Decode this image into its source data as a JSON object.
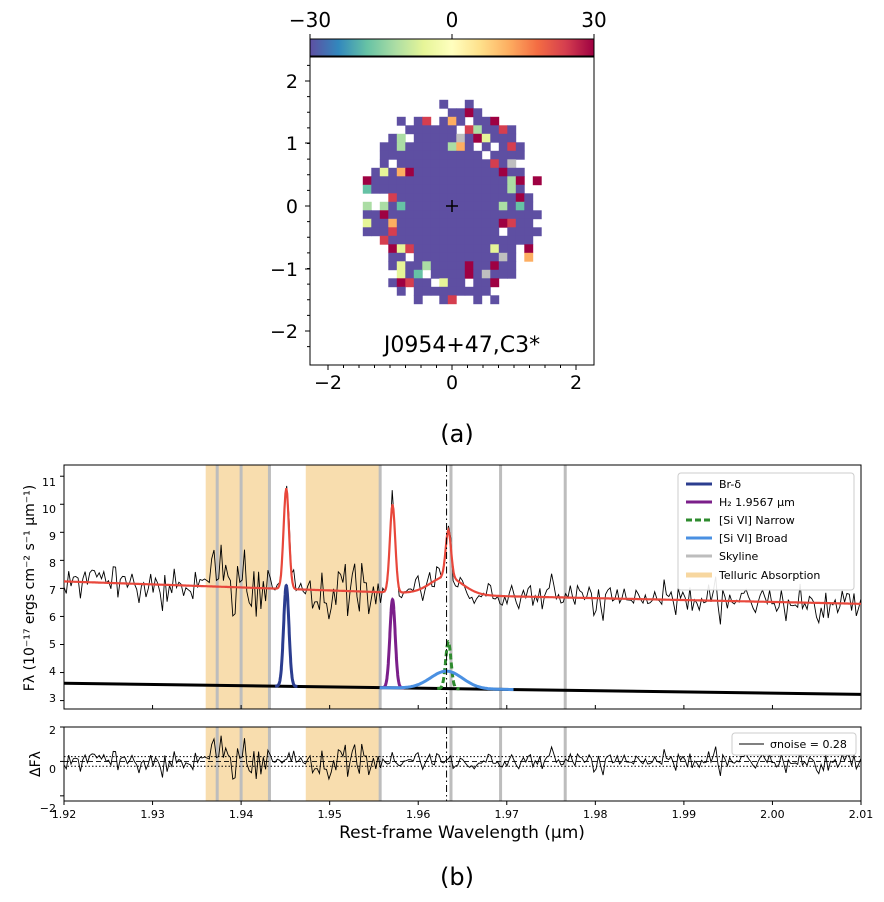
{
  "panel_a": {
    "label": "(a)",
    "colorbar_ticks": [
      "−30",
      "0",
      "30"
    ],
    "x_ticks": [
      "−2",
      "0",
      "2"
    ],
    "y_ticks": [
      "2",
      "1",
      "0",
      "−1",
      "−2"
    ],
    "object_label": "J0954+47,C3*",
    "colorbar_range": [
      -30,
      30
    ],
    "colormap": "Spectral_r",
    "dominant_color": "#5e4fa2",
    "extent": [
      -2.3,
      2.3,
      -2.4,
      2.4
    ]
  },
  "panel_b": {
    "label": "(b)",
    "ylabel_top": "Fλ (10⁻¹⁷ ergs cm⁻² s⁻¹ μm⁻¹)",
    "ylabel_bottom": "ΔFλ",
    "xlabel": "Rest-frame Wavelength (μm)",
    "x_ticks": [
      "1.92",
      "1.93",
      "1.94",
      "1.95",
      "1.96",
      "1.97",
      "1.98",
      "1.99",
      "2.00",
      "2.01"
    ],
    "y_ticks_top": [
      "3",
      "4",
      "5",
      "6",
      "7",
      "8",
      "9",
      "10",
      "11"
    ],
    "y_ticks_bottom": [
      "2",
      "0",
      "−2"
    ],
    "legend": [
      {
        "label": "Br-δ",
        "color": "#2b3d8f",
        "style": "solid"
      },
      {
        "label": "H₂ 1.9567 μm",
        "color": "#7b1f8a",
        "style": "solid"
      },
      {
        "label": "[Si VI] Narrow",
        "color": "#2e8b2e",
        "style": "dashed"
      },
      {
        "label": "[Si VI] Broad",
        "color": "#4a90e2",
        "style": "solid"
      },
      {
        "label": "Skyline",
        "color": "#bdbdbd",
        "style": "solid"
      },
      {
        "label": "Telluric Absorption",
        "color": "#f7d7a0",
        "style": "solid"
      }
    ],
    "noise_legend": "σnoise = 0.28"
  },
  "chart_data": [
    {
      "type": "heatmap",
      "title": "J0954+47,C3*",
      "xlim": [
        -2.3,
        2.3
      ],
      "ylim": [
        -2.4,
        2.4
      ],
      "color_range": [
        -30,
        30
      ],
      "note_values": "velocity map; most spaxels near -30 (purple), scattered outliers"
    },
    {
      "type": "line",
      "xlabel": "Rest-frame Wavelength (μm)",
      "ylabel": "Fλ (10⁻¹⁷ ergs cm⁻² s⁻¹ μm⁻¹)",
      "xlim": [
        1.92,
        2.01
      ],
      "ylim": [
        2.7,
        11.4
      ],
      "telluric_regions": [
        [
          1.936,
          1.9432
        ],
        [
          1.9473,
          1.9557
        ]
      ],
      "skylines": [
        1.9373,
        1.94,
        1.9432,
        1.9557,
        1.9637,
        1.9693,
        1.9766
      ],
      "systemic_line": 1.9632,
      "series": [
        {
          "name": "Br-δ",
          "center": 1.9451,
          "peak": 7.1,
          "sigma": 0.0003,
          "baseline": "continuum"
        },
        {
          "name": "H₂ 1.9567 μm",
          "center": 1.9571,
          "peak": 6.6,
          "sigma": 0.0003,
          "baseline": "continuum"
        },
        {
          "name": "[Si VI] Narrow",
          "center": 1.9634,
          "peak": 5.1,
          "sigma": 0.0003,
          "baseline": "continuum"
        },
        {
          "name": "[Si VI] Broad",
          "center": 1.9632,
          "peak": 4.05,
          "sigma": 0.0018,
          "baseline": "continuum"
        }
      ],
      "continuum": {
        "x": [
          1.92,
          2.01
        ],
        "y": [
          3.62,
          3.22
        ]
      },
      "model_continuum": {
        "x": [
          1.92,
          1.96,
          1.97,
          2.01
        ],
        "y": [
          7.25,
          6.82,
          6.72,
          6.45
        ]
      }
    },
    {
      "type": "line",
      "ylabel": "ΔFλ",
      "xlim": [
        1.92,
        2.01
      ],
      "ylim": [
        -2.3,
        2.0
      ],
      "noise_level": 0.28,
      "noise_lines": [
        0.28,
        -0.28
      ]
    }
  ]
}
